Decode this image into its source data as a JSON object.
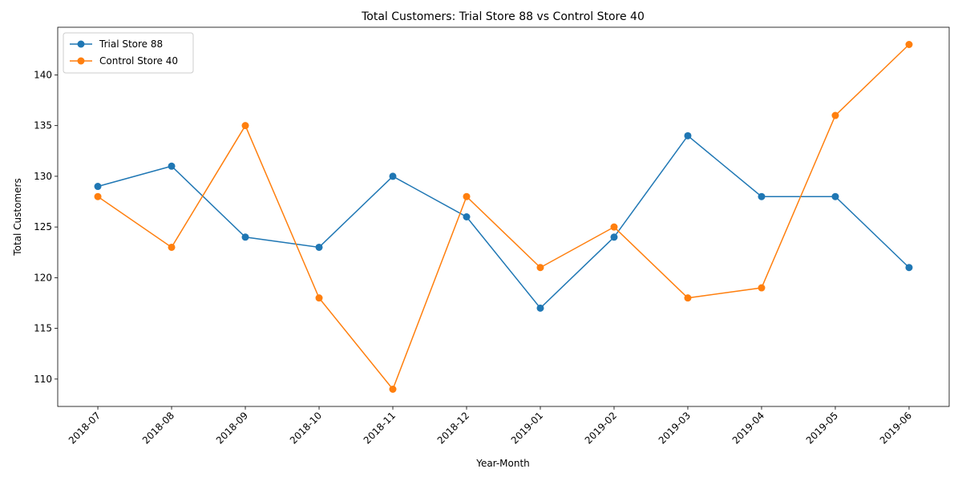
{
  "chart_data": {
    "type": "line",
    "title": "Total Customers: Trial Store 88 vs Control Store 40",
    "xlabel": "Year-Month",
    "ylabel": "Total Customers",
    "categories": [
      "2018-07",
      "2018-08",
      "2018-09",
      "2018-10",
      "2018-11",
      "2018-12",
      "2019-01",
      "2019-02",
      "2019-03",
      "2019-04",
      "2019-05",
      "2019-06"
    ],
    "ylim": [
      107.3,
      144.7
    ],
    "yticks": [
      110,
      115,
      120,
      125,
      130,
      135,
      140
    ],
    "grid": false,
    "legend_position": "top-left",
    "series": [
      {
        "name": "Trial Store 88",
        "color": "#1f77b4",
        "values": [
          129,
          131,
          124,
          123,
          130,
          126,
          117,
          124,
          134,
          128,
          128,
          121
        ]
      },
      {
        "name": "Control Store 40",
        "color": "#ff7f0e",
        "values": [
          128,
          123,
          135,
          118,
          109,
          128,
          121,
          125,
          118,
          119,
          136,
          143
        ]
      }
    ]
  }
}
